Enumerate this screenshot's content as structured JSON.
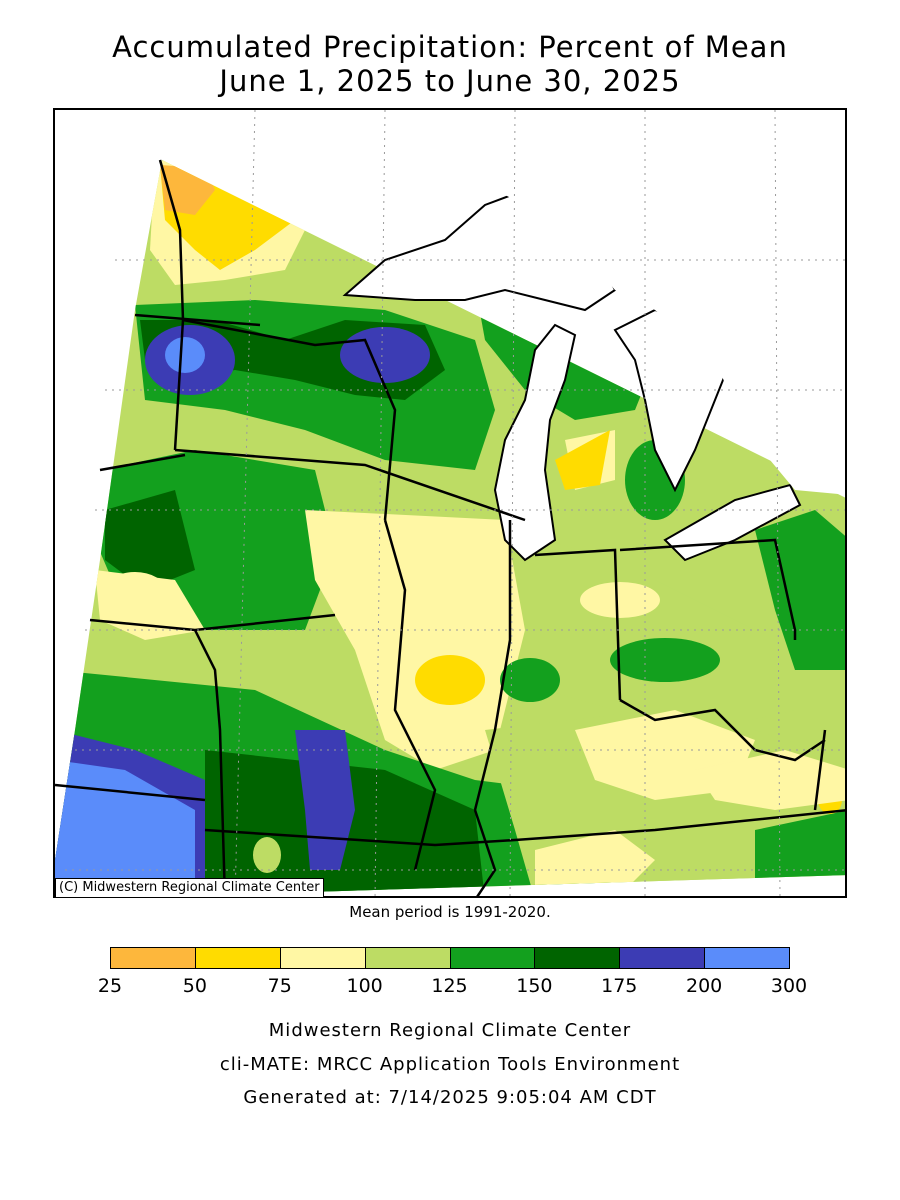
{
  "title": {
    "line1": "Accumulated Precipitation: Percent of Mean",
    "line2": "June 1, 2025 to June 30, 2025"
  },
  "map": {
    "credit": "(C) Midwestern Regional Climate Center",
    "mean_period": "Mean period is 1991-2020."
  },
  "legend": {
    "ticks": [
      "25",
      "50",
      "75",
      "100",
      "125",
      "150",
      "175",
      "200",
      "300"
    ],
    "colors": [
      "#fdb73c",
      "#ffdc00",
      "#fff7a4",
      "#bddc64",
      "#13a01e",
      "#006400",
      "#3c3cb4",
      "#5a8cfa"
    ]
  },
  "footer": {
    "line1": "Midwestern Regional Climate Center",
    "line2": "cli-MATE: MRCC Application Tools Environment",
    "line3": "Generated at: 7/14/2025 9:05:04 AM CDT"
  }
}
